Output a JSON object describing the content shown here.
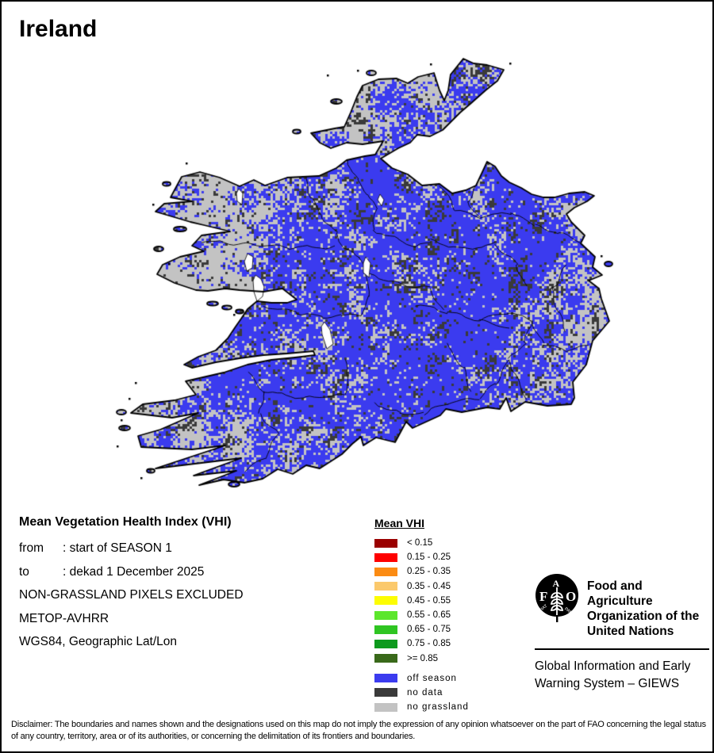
{
  "title": "Ireland",
  "info": {
    "heading": "Mean Vegetation Health Index (VHI)",
    "lines": [
      {
        "label": "from",
        "colon": ":",
        "text": "start of SEASON 1"
      },
      {
        "label": "to",
        "colon": ":",
        "text": "dekad 1 December 2025"
      },
      {
        "label": "",
        "colon": "",
        "text": "NON-GRASSLAND PIXELS EXCLUDED"
      },
      {
        "label": "",
        "colon": "",
        "text": "METOP-AVHRR"
      },
      {
        "label": "",
        "colon": "",
        "text": "WGS84, Geographic Lat/Lon"
      }
    ]
  },
  "legend": {
    "heading": "Mean VHI",
    "classes": [
      {
        "label": "< 0.15",
        "color": "#9a0000"
      },
      {
        "label": "0.15 - 0.25",
        "color": "#fe0000"
      },
      {
        "label": "0.25 - 0.35",
        "color": "#fb8b13"
      },
      {
        "label": "0.35 - 0.45",
        "color": "#fbc96c"
      },
      {
        "label": "0.45 - 0.55",
        "color": "#fdfd02"
      },
      {
        "label": "0.55 - 0.65",
        "color": "#5ce62c"
      },
      {
        "label": "0.65 - 0.75",
        "color": "#2fc522"
      },
      {
        "label": "0.75 - 0.85",
        "color": "#0d9a1d"
      },
      {
        "label": ">= 0.85",
        "color": "#39691a"
      }
    ],
    "extra": [
      {
        "label": "off season",
        "color": "#3b3bef"
      },
      {
        "label": "no data",
        "color": "#3a3a3a"
      },
      {
        "label": "no grassland",
        "color": "#c3c3c3"
      }
    ]
  },
  "org": {
    "logo_letters": [
      "F",
      "A",
      "O"
    ],
    "motto_left": "FIAT",
    "motto_right": "PANIS",
    "name_lines": [
      "Food and Agriculture",
      "Organization of the",
      "United Nations"
    ],
    "giews_lines": [
      "Global Information and Early",
      "Warning System – GIEWS"
    ]
  },
  "disclaimer": "Disclaimer: The boundaries and names shown and the designations used on this map do not imply the expression of any opinion whatsoever on the part of FAO concerning the legal status of any country, territory, area or of its authorities, or concerning the delimitation of its frontiers and boundaries.",
  "map": {
    "region": "Ireland (Republic of Ireland, NI excluded)",
    "raster_categories": [
      "off season",
      "no data",
      "no grassland"
    ],
    "coast_color": "#000000",
    "sea_color": "#ffffff"
  }
}
